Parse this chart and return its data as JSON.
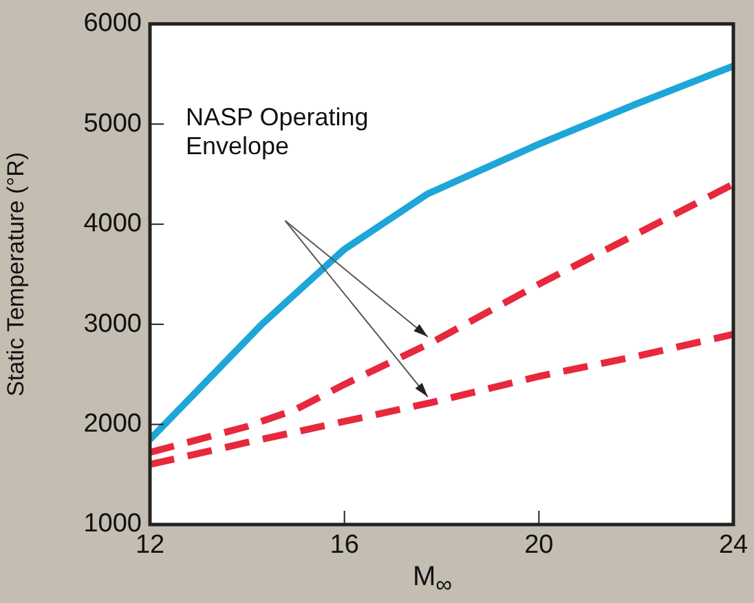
{
  "chart_data": {
    "type": "line",
    "xlabel": "M$_{∞}$",
    "ylabel": "Static Temperature (°R)",
    "annotations": [
      "NASP Operating Envelope"
    ],
    "series": [
      {
        "color": "#1ea6d8",
        "line_style": "solid",
        "x": [
          12,
          14.3,
          16,
          17.7,
          20,
          22,
          24
        ],
        "values": [
          1850,
          3000,
          3750,
          4300,
          4800,
          5200,
          5580
        ]
      },
      {
        "color": "#e8283c",
        "line_style": "dashed",
        "x": [
          12,
          14,
          15,
          16,
          17.8,
          20,
          22,
          24
        ],
        "values": [
          1720,
          1980,
          2150,
          2400,
          2820,
          3400,
          3900,
          4400
        ]
      },
      {
        "color": "#e8283c",
        "line_style": "dashed",
        "x": [
          12,
          14,
          16,
          17.8,
          20,
          22,
          24
        ],
        "values": [
          1600,
          1820,
          2030,
          2220,
          2480,
          2680,
          2900
        ]
      }
    ],
    "xlim": [
      12,
      24
    ],
    "xticks": [
      12,
      16,
      20,
      24
    ],
    "ylim": [
      1000,
      6000
    ],
    "yticks": [
      1000,
      2000,
      3000,
      4000,
      5000,
      6000
    ],
    "grid": false,
    "legend": false,
    "marker": "none"
  }
}
